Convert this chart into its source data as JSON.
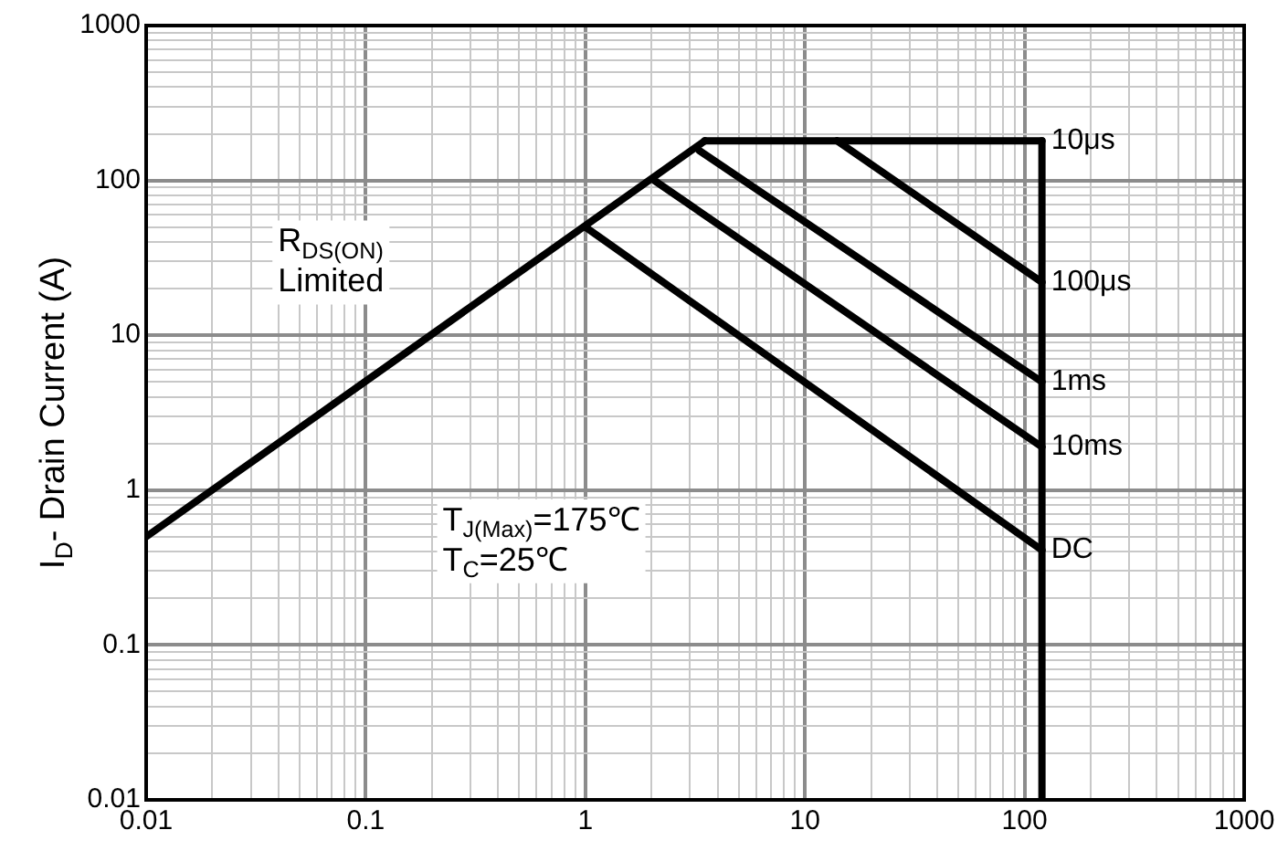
{
  "chart_data": {
    "type": "line",
    "ylabel": "I$_{D}$- Drain Current (A)",
    "log": "xy",
    "grid": true,
    "legend": false,
    "marker": "none",
    "line_style": "solid",
    "xlim": [
      0.01,
      1000
    ],
    "xticks": [
      0.01,
      0.1,
      1,
      10,
      100,
      1000
    ],
    "ylim": [
      0.01,
      1000
    ],
    "yticks": [
      0.01,
      0.1,
      1,
      10,
      100,
      1000
    ],
    "series": [
      {
        "color": "#000000",
        "x": [
          0.01,
          3.5
        ],
        "values": [
          0.5,
          180
        ]
      },
      {
        "name": "10μs",
        "color": "#000000",
        "x": [
          3.5,
          120
        ],
        "values": [
          180,
          180
        ]
      },
      {
        "name": "100μs",
        "color": "#000000",
        "x": [
          14,
          120
        ],
        "values": [
          180,
          22
        ]
      },
      {
        "name": "1ms",
        "color": "#000000",
        "x": [
          3.3,
          120
        ],
        "values": [
          156,
          5
        ]
      },
      {
        "name": "10ms",
        "color": "#000000",
        "x": [
          2.06,
          120
        ],
        "values": [
          100,
          1.9
        ]
      },
      {
        "name": "DC",
        "color": "#000000",
        "x": [
          1,
          120
        ],
        "values": [
          50,
          0.41
        ]
      },
      {
        "color": "#000000",
        "x": [
          120,
          120
        ],
        "values": [
          180,
          0.01
        ]
      }
    ],
    "annotations": [
      "R$_{DS(ON)}$\nLimited",
      "T$_{J(Max)}$=175℃\nT$_{C}$=25℃"
    ]
  }
}
